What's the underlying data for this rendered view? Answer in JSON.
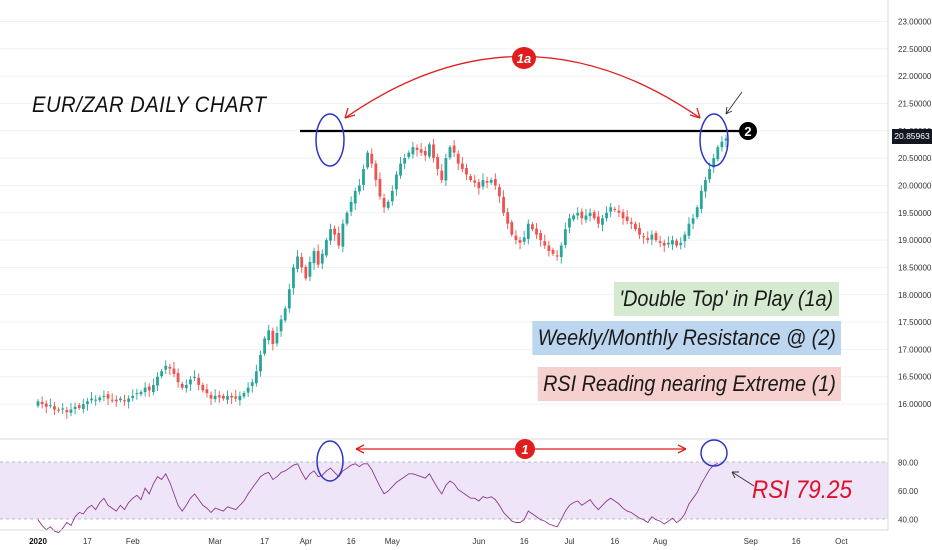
{
  "chart_data": [
    {
      "type": "candlestick",
      "title": "EUR/ZAR DAILY CHART",
      "y_axis_ticks": [
        "16.00000",
        "16.50000",
        "17.00000",
        "17.50000",
        "18.00000",
        "18.50000",
        "19.00000",
        "19.50000",
        "20.00000",
        "20.50000",
        "21.00000",
        "21.50000",
        "22.00000",
        "22.50000",
        "23.00000"
      ],
      "ylim": [
        15.8,
        23.1
      ],
      "last_price": "20.85963",
      "resistance_level": 20.95,
      "annotations": {
        "arc_label": "1a",
        "level_label": "2",
        "notes": [
          "'Double Top' in Play (1a)",
          "Weekly/Monthly Resistance @ (2)",
          "RSI Reading nearing Extreme (1)"
        ]
      },
      "series": [
        {
          "values": [
            16.05,
            16.0,
            15.95,
            15.98,
            15.9,
            15.88,
            15.92,
            15.85,
            15.9,
            15.95,
            15.93,
            16.0,
            16.05,
            16.1,
            16.08,
            16.12,
            16.15,
            16.1,
            16.08,
            16.05,
            16.1,
            16.05,
            16.1,
            16.15,
            16.2,
            16.22,
            16.3,
            16.25,
            16.35,
            16.5,
            16.6,
            16.7,
            16.65,
            16.55,
            16.4,
            16.3,
            16.35,
            16.45,
            16.5,
            16.35,
            16.25,
            16.2,
            16.1,
            16.15,
            16.12,
            16.1,
            16.15,
            16.12,
            16.1,
            16.15,
            16.2,
            16.3,
            16.4,
            16.6,
            16.9,
            17.2,
            17.35,
            17.1,
            17.3,
            17.55,
            17.75,
            18.1,
            18.5,
            18.7,
            18.5,
            18.3,
            18.6,
            18.8,
            18.55,
            18.75,
            19.0,
            19.2,
            19.1,
            18.9,
            19.3,
            19.5,
            19.7,
            19.9,
            20.0,
            20.3,
            20.6,
            20.4,
            20.1,
            19.8,
            19.6,
            19.7,
            19.9,
            20.2,
            20.4,
            20.5,
            20.6,
            20.7,
            20.65,
            20.6,
            20.55,
            20.75,
            20.5,
            20.3,
            20.1,
            20.5,
            20.7,
            20.6,
            20.4,
            20.3,
            20.2,
            20.1,
            20.05,
            19.95,
            20.1,
            20.05,
            20.1,
            20.0,
            19.8,
            19.5,
            19.3,
            19.1,
            19.0,
            18.95,
            19.05,
            19.3,
            19.2,
            19.1,
            19.0,
            18.9,
            18.8,
            18.75,
            18.7,
            18.9,
            19.2,
            19.4,
            19.45,
            19.5,
            19.4,
            19.45,
            19.5,
            19.4,
            19.3,
            19.4,
            19.5,
            19.6,
            19.55,
            19.5,
            19.4,
            19.35,
            19.3,
            19.2,
            19.1,
            19.05,
            19.0,
            19.1,
            19.0,
            18.95,
            18.9,
            18.95,
            19.0,
            18.9,
            18.95,
            19.1,
            19.3,
            19.4,
            19.6,
            19.9,
            20.1,
            20.3,
            20.5,
            20.7,
            20.8,
            20.86
          ]
        }
      ],
      "x_ticks": [
        {
          "label": "2020",
          "i": 0,
          "bold": true
        },
        {
          "label": "17",
          "i": 12
        },
        {
          "label": "Feb",
          "i": 23
        },
        {
          "label": "Mar",
          "i": 43
        },
        {
          "label": "17",
          "i": 55
        },
        {
          "label": "Apr",
          "i": 65
        },
        {
          "label": "16",
          "i": 76
        },
        {
          "label": "May",
          "i": 86
        },
        {
          "label": "Jun",
          "i": 107
        },
        {
          "label": "16",
          "i": 118
        },
        {
          "label": "Jul",
          "i": 129
        },
        {
          "label": "16",
          "i": 140
        },
        {
          "label": "Aug",
          "i": 151
        },
        {
          "label": "Sep",
          "i": 173
        },
        {
          "label": "16",
          "i": 184
        },
        {
          "label": "Oct",
          "i": 195
        }
      ]
    },
    {
      "type": "line",
      "title": "RSI",
      "value_label": "RSI 79.25",
      "arrow_label": "1",
      "y_axis_ticks": [
        "40.00",
        "60.00",
        "80.00"
      ],
      "ylim": [
        30,
        90
      ],
      "bands": [
        30,
        70
      ],
      "series": [
        {
          "values": [
            40,
            36,
            33,
            35,
            32,
            31,
            34,
            38,
            36,
            42,
            45,
            44,
            48,
            50,
            47,
            52,
            55,
            50,
            48,
            46,
            50,
            47,
            52,
            55,
            57,
            54,
            62,
            58,
            65,
            70,
            68,
            72,
            66,
            58,
            50,
            46,
            50,
            55,
            58,
            54,
            50,
            48,
            45,
            48,
            47,
            46,
            49,
            48,
            47,
            50,
            53,
            58,
            62,
            66,
            70,
            72,
            73,
            68,
            70,
            73,
            74,
            76,
            78,
            79,
            73,
            68,
            72,
            74,
            70,
            71,
            74,
            76,
            73,
            70,
            74,
            76,
            78,
            79,
            77,
            79,
            79,
            75,
            69,
            63,
            58,
            60,
            63,
            66,
            68,
            70,
            72,
            72,
            71,
            70,
            69,
            72,
            67,
            62,
            58,
            64,
            67,
            65,
            61,
            59,
            57,
            55,
            55,
            53,
            56,
            55,
            56,
            54,
            50,
            45,
            42,
            39,
            38,
            38,
            40,
            46,
            44,
            42,
            40,
            39,
            37,
            36,
            35,
            40,
            46,
            50,
            52,
            53,
            50,
            52,
            54,
            50,
            47,
            50,
            53,
            55,
            53,
            51,
            48,
            46,
            45,
            43,
            41,
            40,
            38,
            42,
            40,
            39,
            37,
            39,
            41,
            38,
            40,
            44,
            51,
            55,
            59,
            65,
            70,
            75,
            78,
            79.25
          ]
        }
      ]
    }
  ]
}
